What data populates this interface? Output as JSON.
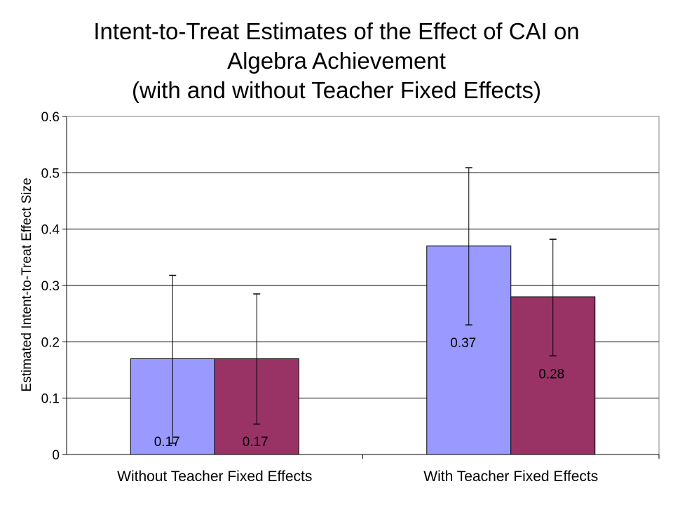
{
  "chart_data": {
    "type": "bar",
    "title_lines": [
      "Intent-to-Treat Estimates of the Effect of CAI on",
      "Algebra Achievement",
      "(with and without Teacher Fixed Effects)"
    ],
    "xlabel": "",
    "ylabel": "Estimated Intent-to-Treat Effect Size",
    "ylim": [
      0,
      0.6
    ],
    "yticks": [
      "0",
      "0.1",
      "0.2",
      "0.3",
      "0.4",
      "0.5",
      "0.6"
    ],
    "grid": true,
    "legend": "none",
    "categories": [
      "Without Teacher Fixed Effects",
      "With Teacher Fixed Effects"
    ],
    "series": [
      {
        "color": "#9999ff",
        "values": [
          0.17,
          0.37
        ],
        "labels": [
          "0.17",
          "0.37"
        ],
        "error_low": [
          0.02,
          0.23
        ],
        "error_high": [
          0.318,
          0.509
        ]
      },
      {
        "color": "#993366",
        "values": [
          0.17,
          0.28
        ],
        "labels": [
          "0.17",
          "0.28"
        ],
        "error_low": [
          0.054,
          0.175
        ],
        "error_high": [
          0.285,
          0.382
        ]
      }
    ]
  }
}
